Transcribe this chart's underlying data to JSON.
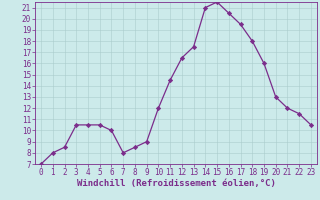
{
  "x": [
    0,
    1,
    2,
    3,
    4,
    5,
    6,
    7,
    8,
    9,
    10,
    11,
    12,
    13,
    14,
    15,
    16,
    17,
    18,
    19,
    20,
    21,
    22,
    23
  ],
  "y": [
    7,
    8,
    8.5,
    10.5,
    10.5,
    10.5,
    10,
    8,
    8.5,
    9,
    12,
    14.5,
    16.5,
    17.5,
    21,
    21.5,
    20.5,
    19.5,
    18,
    16,
    13,
    12,
    11.5,
    10.5
  ],
  "line_color": "#7b2d8b",
  "marker": "D",
  "marker_size": 2.2,
  "bg_color": "#cceaea",
  "grid_color": "#aacccc",
  "xlabel": "Windchill (Refroidissement éolien,°C)",
  "ylim": [
    7,
    21.5
  ],
  "xlim": [
    -0.5,
    23.5
  ],
  "yticks": [
    7,
    8,
    9,
    10,
    11,
    12,
    13,
    14,
    15,
    16,
    17,
    18,
    19,
    20,
    21
  ],
  "xticks": [
    0,
    1,
    2,
    3,
    4,
    5,
    6,
    7,
    8,
    9,
    10,
    11,
    12,
    13,
    14,
    15,
    16,
    17,
    18,
    19,
    20,
    21,
    22,
    23
  ],
  "tick_color": "#7b2d8b",
  "label_fontsize": 6.5,
  "tick_fontsize": 5.5
}
